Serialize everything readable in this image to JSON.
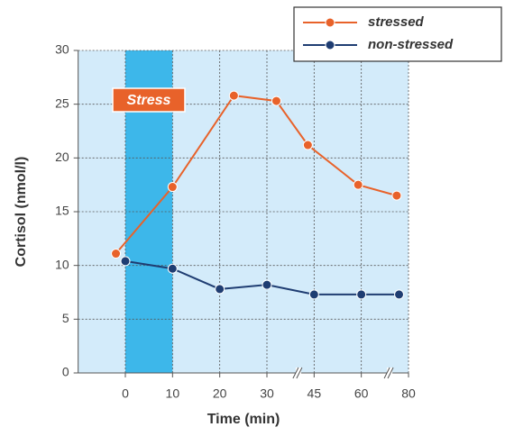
{
  "chart_data": {
    "type": "line",
    "xlabel": "Time (min)",
    "ylabel": "Cortisol (nmol/l)",
    "xlim": [
      -10,
      80
    ],
    "xticks": [
      0,
      10,
      20,
      30,
      45,
      60,
      80
    ],
    "ylim": [
      0,
      30
    ],
    "yticks": [
      0,
      5,
      10,
      15,
      20,
      25,
      30
    ],
    "grid": true,
    "legend": "top-right",
    "x_breaks": [
      40,
      72
    ],
    "highlight": {
      "label": "Stress",
      "from": 0,
      "to": 10,
      "color": "#3db7ea"
    },
    "background": "#d3ebfa",
    "series": [
      {
        "name": "stressed",
        "color": "#e8622a",
        "x": [
          -2,
          10,
          23,
          33,
          43,
          59,
          75
        ],
        "values": [
          11.1,
          17.3,
          25.8,
          25.3,
          21.2,
          17.5,
          16.5
        ]
      },
      {
        "name": "non-stressed",
        "color": "#1f3d72",
        "x": [
          0,
          10,
          20,
          30,
          45,
          60,
          76
        ],
        "values": [
          10.4,
          9.7,
          7.8,
          8.2,
          7.3,
          7.3,
          7.3
        ]
      }
    ]
  }
}
